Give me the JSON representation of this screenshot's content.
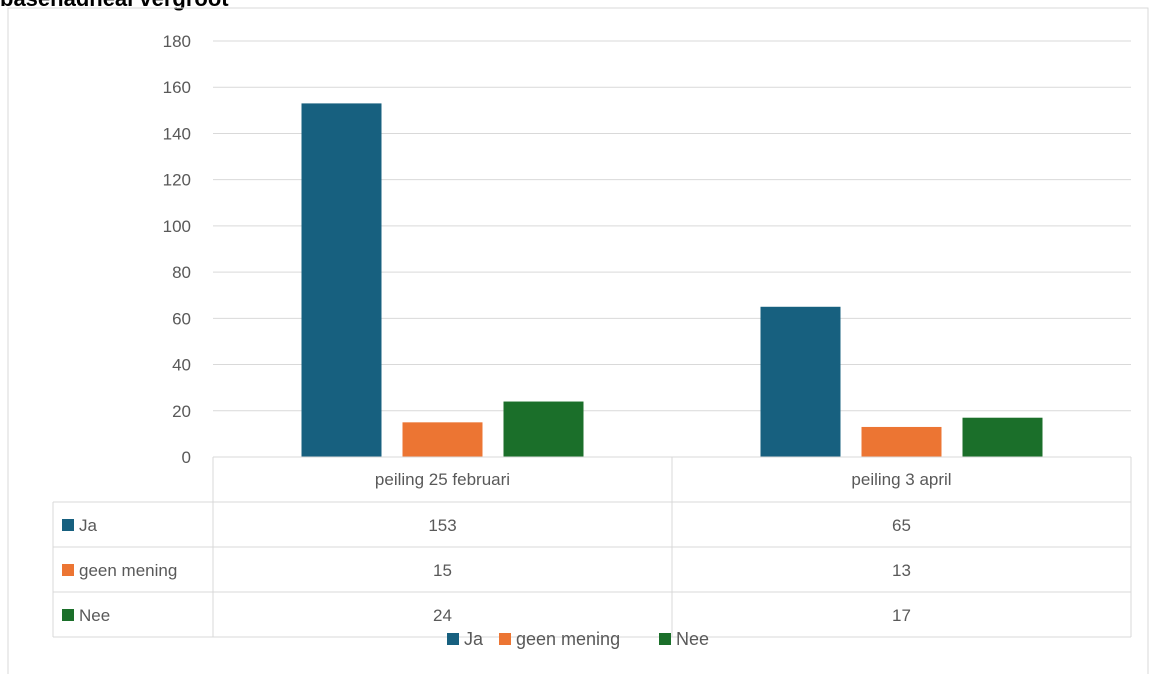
{
  "chart_data": {
    "type": "bar",
    "title": "basehadheal vergroot",
    "categories": [
      "peiling 25 februari",
      "peiling 3 april"
    ],
    "series": [
      {
        "name": "Ja",
        "values": [
          153,
          65
        ],
        "color": "#17607F"
      },
      {
        "name": "geen mening",
        "values": [
          15,
          13
        ],
        "color": "#EC7533"
      },
      {
        "name": "Nee",
        "values": [
          24,
          17
        ],
        "color": "#1B6F2A"
      }
    ],
    "ylim": [
      0,
      180
    ],
    "yticks": [
      0,
      20,
      40,
      60,
      80,
      100,
      120,
      140,
      160,
      180
    ],
    "grid": true,
    "legend_position": "bottom",
    "data_table": true
  }
}
